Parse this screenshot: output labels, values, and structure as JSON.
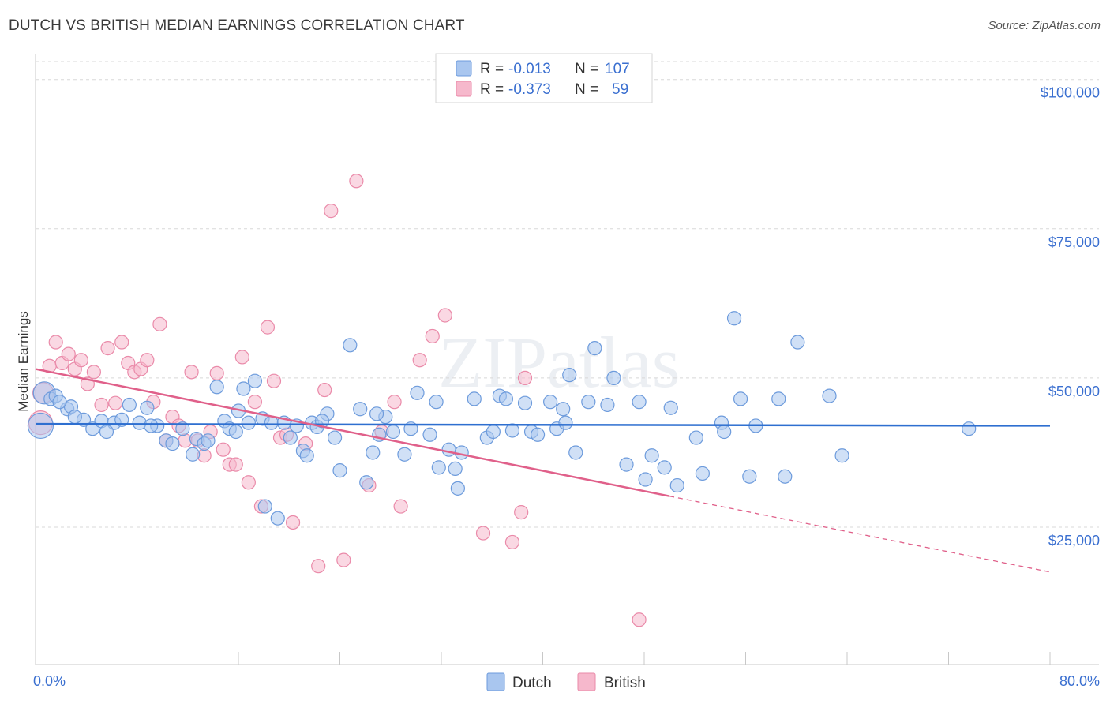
{
  "title": "DUTCH VS BRITISH MEDIAN EARNINGS CORRELATION CHART",
  "source": "Source: ZipAtlas.com",
  "watermark": "ZIPatlas",
  "colors": {
    "dutch_fill": "#a9c6ef",
    "dutch_stroke": "#6d9bdc",
    "dutch_line": "#2e6fd0",
    "british_fill": "#f6b8cc",
    "british_stroke": "#ea8aa9",
    "british_line": "#e0608a",
    "grid": "#d8d8d8",
    "label_blue": "#3a6fd0"
  },
  "legend": {
    "rows": [
      {
        "r_label": "R =",
        "r_value": "-0.013",
        "n_label": "N =",
        "n_value": "107"
      },
      {
        "r_label": "R =",
        "r_value": "-0.373",
        "n_label": "N =",
        "n_value": "59"
      }
    ]
  },
  "chart_data": {
    "type": "scatter",
    "title": "DUTCH VS BRITISH MEDIAN EARNINGS CORRELATION CHART",
    "xlabel": "",
    "ylabel": "Median Earnings",
    "xlim": [
      0,
      80
    ],
    "ylim": [
      2000,
      103000
    ],
    "x_tick_labels": [
      "0.0%",
      "80.0%"
    ],
    "y_ticks": [
      25000,
      50000,
      75000,
      100000
    ],
    "y_tick_labels": [
      "$25,000",
      "$50,000",
      "$75,000",
      "$100,000"
    ],
    "grid": true,
    "legend_position": "top-center",
    "series": [
      {
        "name": "Dutch",
        "r": -0.013,
        "n": 107,
        "trend": {
          "x0": 0,
          "y0": 42300,
          "x1": 80,
          "y1": 42000
        },
        "points": [
          [
            0.7,
            47500
          ],
          [
            0.4,
            42000
          ],
          [
            1.2,
            46500
          ],
          [
            1.6,
            47000
          ],
          [
            2.5,
            44800
          ],
          [
            2.8,
            45200
          ],
          [
            3.8,
            43000
          ],
          [
            4.5,
            41500
          ],
          [
            5.2,
            42800
          ],
          [
            6.2,
            42500
          ],
          [
            6.8,
            43000
          ],
          [
            7.4,
            45500
          ],
          [
            8.2,
            42500
          ],
          [
            8.8,
            45000
          ],
          [
            9.6,
            42000
          ],
          [
            10.3,
            39500
          ],
          [
            10.8,
            39000
          ],
          [
            11.6,
            41500
          ],
          [
            12.4,
            37200
          ],
          [
            12.7,
            39800
          ],
          [
            13.3,
            39000
          ],
          [
            13.6,
            39500
          ],
          [
            14.3,
            48500
          ],
          [
            14.9,
            42800
          ],
          [
            15.3,
            41500
          ],
          [
            16.0,
            44500
          ],
          [
            16.4,
            48200
          ],
          [
            16.8,
            42500
          ],
          [
            17.3,
            49500
          ],
          [
            17.9,
            43200
          ],
          [
            18.1,
            28500
          ],
          [
            18.6,
            42500
          ],
          [
            19.1,
            26500
          ],
          [
            19.6,
            42500
          ],
          [
            20.1,
            40000
          ],
          [
            20.6,
            42000
          ],
          [
            21.1,
            37800
          ],
          [
            21.4,
            37000
          ],
          [
            21.8,
            42500
          ],
          [
            22.2,
            41800
          ],
          [
            23.0,
            44000
          ],
          [
            23.6,
            40000
          ],
          [
            24.0,
            34500
          ],
          [
            24.8,
            55500
          ],
          [
            25.6,
            44800
          ],
          [
            26.1,
            32500
          ],
          [
            26.6,
            37500
          ],
          [
            27.1,
            40500
          ],
          [
            27.6,
            43500
          ],
          [
            28.2,
            41000
          ],
          [
            29.1,
            37200
          ],
          [
            29.6,
            41500
          ],
          [
            30.1,
            47500
          ],
          [
            31.1,
            40500
          ],
          [
            31.6,
            46000
          ],
          [
            32.6,
            38000
          ],
          [
            33.1,
            34800
          ],
          [
            33.3,
            31500
          ],
          [
            33.6,
            37500
          ],
          [
            34.6,
            46500
          ],
          [
            35.6,
            40000
          ],
          [
            36.1,
            41000
          ],
          [
            36.6,
            47000
          ],
          [
            37.1,
            46500
          ],
          [
            37.6,
            41200
          ],
          [
            38.6,
            45800
          ],
          [
            39.1,
            41000
          ],
          [
            39.6,
            40500
          ],
          [
            40.6,
            46000
          ],
          [
            41.1,
            41500
          ],
          [
            41.6,
            44800
          ],
          [
            41.8,
            42500
          ],
          [
            42.1,
            50500
          ],
          [
            42.6,
            37500
          ],
          [
            43.6,
            46000
          ],
          [
            44.1,
            55000
          ],
          [
            45.1,
            45500
          ],
          [
            45.6,
            50000
          ],
          [
            46.6,
            35500
          ],
          [
            47.6,
            46000
          ],
          [
            48.1,
            33000
          ],
          [
            48.6,
            37000
          ],
          [
            49.6,
            35000
          ],
          [
            50.1,
            45000
          ],
          [
            50.6,
            32000
          ],
          [
            52.1,
            40000
          ],
          [
            52.6,
            34000
          ],
          [
            54.1,
            42500
          ],
          [
            54.3,
            41000
          ],
          [
            55.1,
            60000
          ],
          [
            55.6,
            46500
          ],
          [
            56.3,
            33500
          ],
          [
            56.8,
            42000
          ],
          [
            58.6,
            46500
          ],
          [
            59.1,
            33500
          ],
          [
            60.1,
            56000
          ],
          [
            62.6,
            47000
          ],
          [
            63.6,
            37000
          ],
          [
            73.6,
            41500
          ],
          [
            1.9,
            46000
          ],
          [
            3.1,
            43500
          ],
          [
            5.6,
            41000
          ],
          [
            9.1,
            42000
          ],
          [
            15.8,
            41000
          ],
          [
            22.6,
            42800
          ],
          [
            26.9,
            44000
          ],
          [
            31.8,
            35000
          ]
        ]
      },
      {
        "name": "British",
        "r": -0.373,
        "n": 59,
        "trend": {
          "x0": 0,
          "y0": 51500,
          "x1": 50,
          "y1": 30200,
          "dash_x1": 80,
          "dash_y1": 17500
        },
        "points": [
          [
            0.6,
            47500
          ],
          [
            0.4,
            42500
          ],
          [
            1.1,
            52000
          ],
          [
            1.6,
            56000
          ],
          [
            2.1,
            52500
          ],
          [
            2.6,
            54000
          ],
          [
            3.1,
            51500
          ],
          [
            3.6,
            53000
          ],
          [
            4.1,
            49000
          ],
          [
            4.6,
            51000
          ],
          [
            5.2,
            45500
          ],
          [
            5.7,
            55000
          ],
          [
            6.3,
            45800
          ],
          [
            6.8,
            56000
          ],
          [
            7.3,
            52500
          ],
          [
            7.8,
            51000
          ],
          [
            8.3,
            51500
          ],
          [
            8.8,
            53000
          ],
          [
            9.3,
            46000
          ],
          [
            9.8,
            59000
          ],
          [
            10.3,
            39500
          ],
          [
            10.8,
            43500
          ],
          [
            11.3,
            42000
          ],
          [
            11.8,
            39500
          ],
          [
            12.3,
            51000
          ],
          [
            12.8,
            39500
          ],
          [
            13.3,
            37000
          ],
          [
            13.8,
            41000
          ],
          [
            14.3,
            50800
          ],
          [
            14.8,
            38000
          ],
          [
            15.3,
            35500
          ],
          [
            15.8,
            35500
          ],
          [
            16.3,
            53500
          ],
          [
            16.8,
            32500
          ],
          [
            17.3,
            46000
          ],
          [
            17.8,
            28500
          ],
          [
            18.3,
            58500
          ],
          [
            18.8,
            49500
          ],
          [
            19.3,
            40000
          ],
          [
            19.8,
            40500
          ],
          [
            20.3,
            25800
          ],
          [
            21.3,
            39000
          ],
          [
            22.3,
            18500
          ],
          [
            22.8,
            48000
          ],
          [
            23.3,
            78000
          ],
          [
            24.3,
            19500
          ],
          [
            25.3,
            83000
          ],
          [
            26.3,
            32000
          ],
          [
            27.3,
            41000
          ],
          [
            28.3,
            46000
          ],
          [
            28.8,
            28500
          ],
          [
            30.3,
            53000
          ],
          [
            31.3,
            57000
          ],
          [
            32.3,
            60500
          ],
          [
            35.3,
            24000
          ],
          [
            37.6,
            22500
          ],
          [
            38.3,
            27500
          ],
          [
            38.6,
            50000
          ],
          [
            47.6,
            9500
          ]
        ]
      }
    ]
  },
  "bottom_legend": {
    "items": [
      "Dutch",
      "British"
    ]
  }
}
